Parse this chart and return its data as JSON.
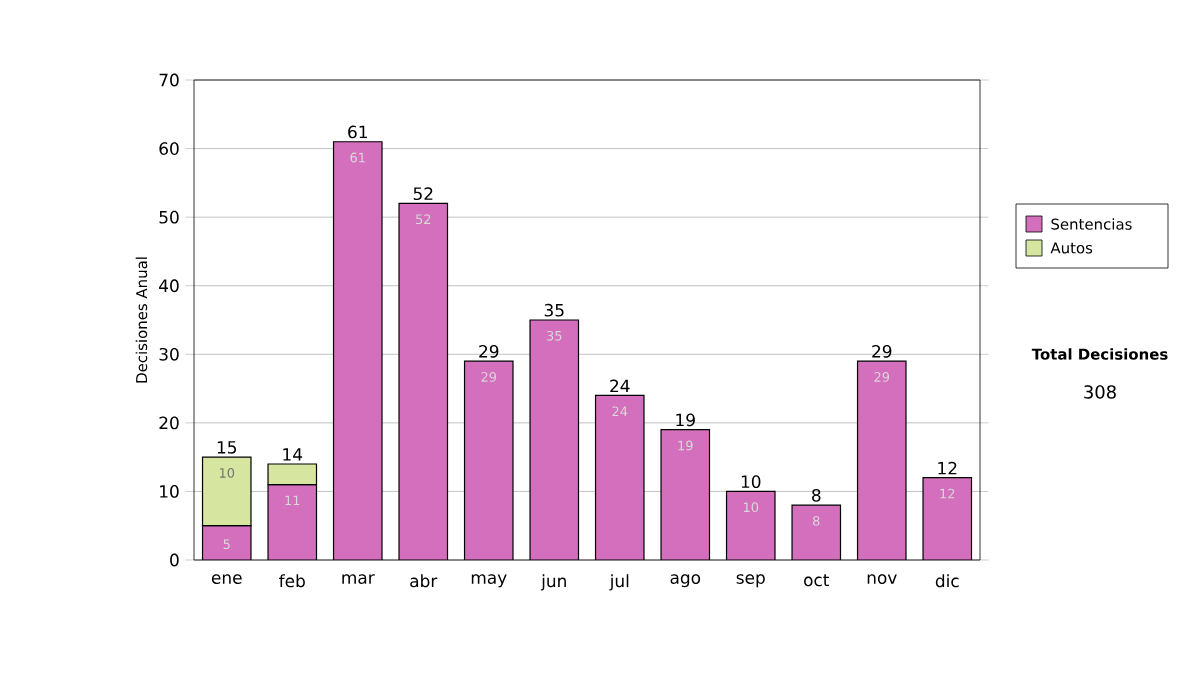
{
  "chart_data": {
    "type": "bar",
    "stacked": true,
    "ylabel": "Decisiones Anual",
    "categories": [
      "ene",
      "feb",
      "mar",
      "abr",
      "may",
      "jun",
      "jul",
      "ago",
      "sep",
      "oct",
      "nov",
      "dic"
    ],
    "series": [
      {
        "name": "Sentencias",
        "color": "#d36fbd",
        "values": [
          5,
          11,
          61,
          52,
          29,
          35,
          24,
          19,
          10,
          8,
          29,
          12
        ],
        "value_labels": [
          "5",
          "11",
          "61",
          "52",
          "29",
          "35",
          "24",
          "19",
          "10",
          "8",
          "29",
          "12"
        ]
      },
      {
        "name": "Autos",
        "color": "#d6e6a0",
        "values": [
          10,
          3,
          null,
          null,
          null,
          null,
          null,
          null,
          null,
          null,
          null,
          null
        ],
        "value_labels": [
          "10",
          null,
          null,
          null,
          null,
          null,
          null,
          null,
          null,
          null,
          null,
          null
        ]
      }
    ],
    "totals": [
      "15",
      "14",
      "61",
      "52",
      "29",
      "35",
      "24",
      "19",
      "10",
      "8",
      "29",
      "12"
    ],
    "ylim": [
      0,
      70
    ],
    "yticks": [
      0,
      10,
      20,
      30,
      40,
      50,
      60,
      70
    ],
    "grid": "y",
    "legend": "right",
    "annotations": [
      "Total Decisiones",
      "308"
    ]
  }
}
